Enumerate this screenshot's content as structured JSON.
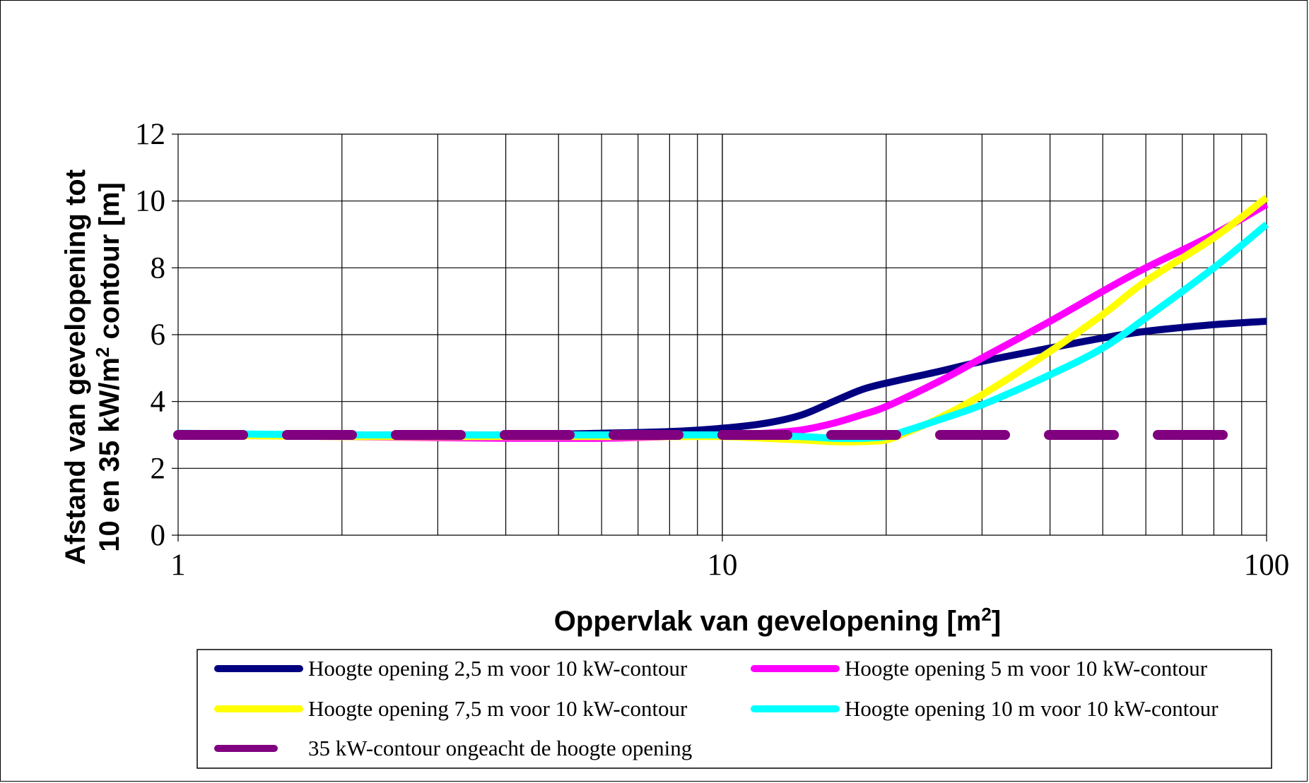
{
  "chart_data": {
    "type": "line",
    "x_scale": "log",
    "xlim": [
      1,
      100
    ],
    "ylim": [
      0,
      12
    ],
    "grid": true,
    "x_ticks": [
      "1",
      "10",
      "100"
    ],
    "y_ticks": [
      "0",
      "2",
      "4",
      "6",
      "8",
      "10",
      "12"
    ],
    "xlabel": "Oppervlak van gevelopening [m",
    "xlabel_sup": "2",
    "xlabel_end": "]",
    "ylabel_line1": "Afstand van gevelopening tot",
    "ylabel_line2": "10 en 35 kW/m",
    "ylabel_sup": "2",
    "ylabel_line2_end": " contour [m]",
    "legend_position": "bottom",
    "series": [
      {
        "name": "Hoogte opening 2,5 m voor 10 kW-contour",
        "color": "#000080",
        "dash": false,
        "x": [
          1,
          2,
          4,
          6,
          8,
          10,
          12,
          14,
          16,
          18,
          20,
          25,
          30,
          40,
          50,
          60,
          80,
          100
        ],
        "y": [
          3.0,
          3.0,
          3.0,
          3.05,
          3.1,
          3.2,
          3.35,
          3.6,
          4.0,
          4.35,
          4.55,
          4.9,
          5.2,
          5.6,
          5.9,
          6.1,
          6.3,
          6.4
        ]
      },
      {
        "name": "Hoogte opening 5 m voor 10 kW-contour",
        "color": "#FF00FF",
        "dash": false,
        "x": [
          1,
          2,
          4,
          6,
          8,
          10,
          12,
          14,
          16,
          18,
          20,
          25,
          30,
          40,
          50,
          60,
          80,
          100
        ],
        "y": [
          3.0,
          2.95,
          2.9,
          2.9,
          2.95,
          3.0,
          3.05,
          3.15,
          3.35,
          3.6,
          3.85,
          4.6,
          5.3,
          6.4,
          7.3,
          8.0,
          9.0,
          9.9
        ]
      },
      {
        "name": "Hoogte opening 7,5 m voor 10 kW-contour",
        "color": "#FFFF00",
        "dash": false,
        "x": [
          1,
          2,
          4,
          6,
          8,
          10,
          12,
          14,
          16,
          18,
          20,
          22,
          25,
          30,
          40,
          50,
          60,
          80,
          100
        ],
        "y": [
          3.0,
          2.95,
          2.95,
          2.95,
          2.95,
          2.95,
          2.9,
          2.85,
          2.8,
          2.8,
          2.85,
          3.1,
          3.5,
          4.2,
          5.5,
          6.6,
          7.6,
          8.9,
          10.1
        ]
      },
      {
        "name": "Hoogte opening 10 m voor 10 kW-contour",
        "color": "#00FFFF",
        "dash": false,
        "x": [
          1,
          2,
          4,
          6,
          8,
          10,
          12,
          14,
          16,
          18,
          20,
          22,
          25,
          30,
          40,
          50,
          60,
          80,
          100
        ],
        "y": [
          3.05,
          3.0,
          3.0,
          3.0,
          3.0,
          3.0,
          2.98,
          2.95,
          2.9,
          2.9,
          2.95,
          3.15,
          3.45,
          3.9,
          4.8,
          5.6,
          6.5,
          8.0,
          9.3
        ]
      },
      {
        "name": "35 kW-contour ongeacht de hoogte opening",
        "color": "#800080",
        "dash": true,
        "x": [
          1,
          85
        ],
        "y": [
          3.0,
          3.0
        ]
      }
    ]
  }
}
